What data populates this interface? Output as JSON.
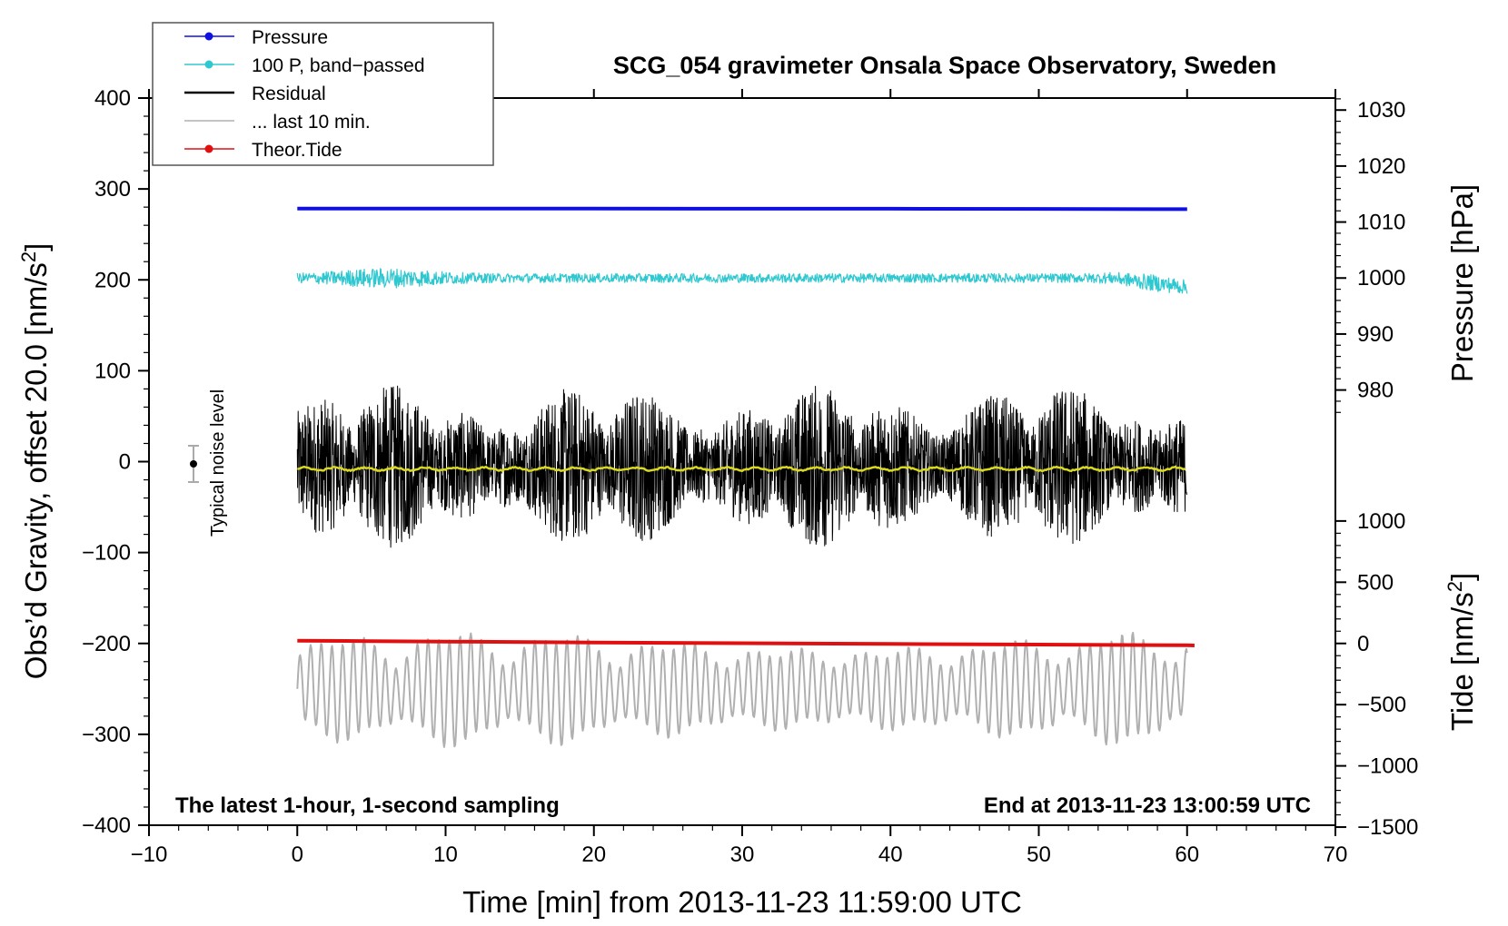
{
  "chart_data": {
    "type": "line",
    "title": "SCG_054 gravimeter Onsala Space Observatory, Sweden",
    "xlabel": "Time [min] from 2013-11-23 11:59:00 UTC",
    "ylabel_left": "Obs’d Gravity, offset 20.0 [nm/s",
    "ylabel_right_top": "Pressure [hPa]",
    "ylabel_right_bottom": "Tide [nm/s",
    "superscript": "2",
    "superscript_close": "]",
    "xlim": [
      -10,
      70
    ],
    "ylim_left": [
      -400,
      400
    ],
    "x_ticks": [
      "−10",
      "0",
      "10",
      "20",
      "30",
      "40",
      "50",
      "60",
      "70"
    ],
    "y_ticks_left": [
      "400",
      "300",
      "200",
      "100",
      "0",
      "−100",
      "−200",
      "−300",
      "−400"
    ],
    "pressure_ticks": [
      "1030",
      "1020",
      "1010",
      "1000",
      "990",
      "980"
    ],
    "tide_ticks": [
      "1000",
      "500",
      "0",
      "−500",
      "−1000",
      "−1500"
    ],
    "annotation_left": "The latest 1-hour, 1-second sampling",
    "annotation_right": "End at 2013-11-23 13:00:59 UTC",
    "noise_label": "Typical noise level",
    "legend": [
      {
        "label": "Pressure",
        "color": "#1010e0",
        "marker": true
      },
      {
        "label": "100 P, band−passed",
        "color": "#30c8d0",
        "marker": true
      },
      {
        "label": "Residual",
        "color": "#000000",
        "marker": false
      },
      {
        "label": "... last 10 min.",
        "color": "#b0b0b0",
        "marker": false
      },
      {
        "label": "Theor.Tide",
        "color": "#e01010",
        "marker": true
      }
    ],
    "series": [
      {
        "name": "Pressure",
        "color": "#1010e0",
        "x": [
          0,
          10,
          20,
          30,
          40,
          50,
          60
        ],
        "y": [
          278.5,
          278.4,
          278.4,
          278.3,
          278.3,
          278.1,
          277.8
        ]
      },
      {
        "name": "100 P, band-passed",
        "color": "#30c8d0",
        "center": 202,
        "amplitude": 10,
        "x_range": [
          0,
          60
        ]
      },
      {
        "name": "Residual",
        "color": "#000000",
        "center": -5,
        "amplitude": 70,
        "x_range": [
          0,
          60
        ]
      },
      {
        "name": "Residual smoothed",
        "color": "#d8d820",
        "center": -8,
        "x_range": [
          0,
          60
        ]
      },
      {
        "name": "... last 10 min.",
        "color": "#b0b0b0",
        "center": -250,
        "amplitude": 60,
        "x_range": [
          0,
          60
        ]
      },
      {
        "name": "Theor.Tide",
        "color": "#e01010",
        "x": [
          0,
          5,
          10,
          20,
          30,
          40,
          50,
          60,
          60.5
        ],
        "y": [
          -197,
          -197.5,
          -198,
          -199,
          -199.8,
          -200.5,
          -201.2,
          -202,
          -202.2
        ]
      }
    ]
  }
}
